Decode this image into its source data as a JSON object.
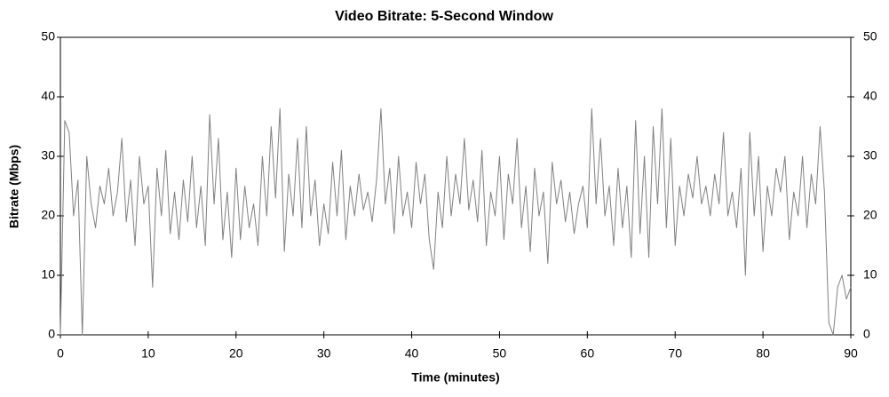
{
  "chart_data": {
    "type": "line",
    "title": "Video Bitrate: 5-Second Window",
    "x_label": "Time (minutes)",
    "y_label": "Bitrate (Mbps)",
    "xlim": [
      0,
      90
    ],
    "xticks": [
      0,
      10,
      20,
      30,
      40,
      50,
      60,
      70,
      80,
      90
    ],
    "ylim": [
      0,
      50
    ],
    "yticks": [
      0,
      10,
      20,
      30,
      40,
      50
    ],
    "y2lim": [
      0,
      50
    ],
    "y2ticks": [
      0,
      10,
      20,
      30,
      40,
      50
    ],
    "grid": false,
    "x": [
      0,
      0.5,
      1,
      1.5,
      2,
      2.5,
      3,
      3.5,
      4,
      4.5,
      5,
      5.5,
      6,
      6.5,
      7,
      7.5,
      8,
      8.5,
      9,
      9.5,
      10,
      10.5,
      11,
      11.5,
      12,
      12.5,
      13,
      13.5,
      14,
      14.5,
      15,
      15.5,
      16,
      16.5,
      17,
      17.5,
      18,
      18.5,
      19,
      19.5,
      20,
      20.5,
      21,
      21.5,
      22,
      22.5,
      23,
      23.5,
      24,
      24.5,
      25,
      25.5,
      26,
      26.5,
      27,
      27.5,
      28,
      28.5,
      29,
      29.5,
      30,
      30.5,
      31,
      31.5,
      32,
      32.5,
      33,
      33.5,
      34,
      34.5,
      35,
      35.5,
      36,
      36.5,
      37,
      37.5,
      38,
      38.5,
      39,
      39.5,
      40,
      40.5,
      41,
      41.5,
      42,
      42.5,
      43,
      43.5,
      44,
      44.5,
      45,
      45.5,
      46,
      46.5,
      47,
      47.5,
      48,
      48.5,
      49,
      49.5,
      50,
      50.5,
      51,
      51.5,
      52,
      52.5,
      53,
      53.5,
      54,
      54.5,
      55,
      55.5,
      56,
      56.5,
      57,
      57.5,
      58,
      58.5,
      59,
      59.5,
      60,
      60.5,
      61,
      61.5,
      62,
      62.5,
      63,
      63.5,
      64,
      64.5,
      65,
      65.5,
      66,
      66.5,
      67,
      67.5,
      68,
      68.5,
      69,
      69.5,
      70,
      70.5,
      71,
      71.5,
      72,
      72.5,
      73,
      73.5,
      74,
      74.5,
      75,
      75.5,
      76,
      76.5,
      77,
      77.5,
      78,
      78.5,
      79,
      79.5,
      80,
      80.5,
      81,
      81.5,
      82,
      82.5,
      83,
      83.5,
      84,
      84.5,
      85,
      85.5,
      86,
      86.5,
      87,
      87.5,
      88,
      88.5,
      89,
      89.5,
      90
    ],
    "series": [
      {
        "color": "#808080",
        "values": [
          0,
          36,
          34,
          20,
          26,
          0,
          30,
          22,
          18,
          25,
          22,
          28,
          20,
          24,
          33,
          19,
          26,
          15,
          30,
          22,
          25,
          8,
          28,
          20,
          31,
          17,
          24,
          16,
          26,
          19,
          30,
          18,
          25,
          15,
          37,
          22,
          33,
          16,
          24,
          13,
          28,
          16,
          25,
          18,
          22,
          15,
          30,
          20,
          35,
          23,
          38,
          14,
          27,
          20,
          33,
          18,
          35,
          20,
          26,
          15,
          22,
          17,
          29,
          20,
          31,
          16,
          25,
          20,
          27,
          21,
          24,
          19,
          26,
          38,
          22,
          28,
          17,
          30,
          20,
          24,
          18,
          29,
          22,
          27,
          16,
          11,
          24,
          18,
          30,
          20,
          27,
          22,
          33,
          21,
          26,
          19,
          31,
          15,
          24,
          20,
          30,
          16,
          27,
          22,
          33,
          18,
          25,
          14,
          28,
          20,
          24,
          12,
          29,
          22,
          26,
          19,
          24,
          17,
          22,
          25,
          18,
          38,
          22,
          33,
          20,
          25,
          15,
          28,
          18,
          25,
          13,
          36,
          17,
          30,
          13,
          35,
          22,
          38,
          18,
          33,
          15,
          25,
          20,
          27,
          23,
          30,
          22,
          25,
          20,
          27,
          22,
          34,
          20,
          24,
          18,
          28,
          10,
          34,
          20,
          30,
          14,
          25,
          20,
          28,
          24,
          30,
          16,
          24,
          20,
          30,
          18,
          27,
          22,
          35,
          24,
          2,
          0,
          8,
          10,
          6,
          8
        ]
      }
    ]
  }
}
